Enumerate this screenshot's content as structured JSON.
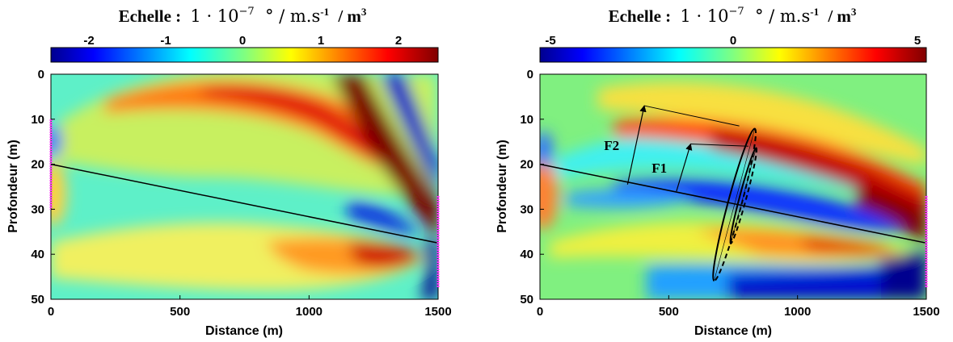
{
  "chart_data": [
    {
      "type": "heatmap",
      "title_prefix": "Echelle :",
      "title_math": "1 · 10",
      "title_exp": "−7",
      "title_units": "° / m.s",
      "title_units_exp": "-1",
      "title_tail": "/ m",
      "title_tail_exp": "3",
      "colorbar": {
        "ticks": [
          "-2",
          "-1",
          "0",
          "1",
          "2"
        ],
        "tick_values": [
          -2,
          -1,
          0,
          1,
          2
        ],
        "range": [
          -2.5,
          2.5
        ]
      },
      "xlabel": "Distance (m)",
      "ylabel": "Profondeur (m)",
      "xlim": [
        0,
        1500
      ],
      "ylim": [
        50,
        0
      ],
      "xticks": [
        0,
        500,
        1000,
        1500
      ],
      "yticks": [
        0,
        10,
        20,
        30,
        40,
        50
      ],
      "interface_line": [
        [
          0,
          20
        ],
        [
          1500,
          37.5
        ]
      ],
      "colormap": "jet",
      "annotations": []
    },
    {
      "type": "heatmap",
      "title_prefix": "Echelle :",
      "title_math": "1 · 10",
      "title_exp": "−7",
      "title_units": "° / m.s",
      "title_units_exp": "-1",
      "title_tail": "/ m",
      "title_tail_exp": "3",
      "colorbar": {
        "ticks": [
          "-5",
          "0",
          "5"
        ],
        "tick_values": [
          -5,
          0,
          5
        ],
        "range": [
          -5,
          5
        ]
      },
      "xlabel": "Distance (m)",
      "ylabel": "Profondeur (m)",
      "xlim": [
        0,
        1500
      ],
      "ylim": [
        50,
        0
      ],
      "xticks": [
        0,
        500,
        1000,
        1500
      ],
      "yticks": [
        0,
        10,
        20,
        30,
        40,
        50
      ],
      "interface_line": [
        [
          0,
          20
        ],
        [
          1500,
          37.5
        ]
      ],
      "colormap": "jet",
      "annotations": [
        {
          "label": "F2",
          "base": [
            340,
            24.5
          ],
          "tip": [
            405,
            7
          ],
          "ellipse_center": [
            755,
            29
          ],
          "ellipse_semi": [
            80,
            17.5
          ]
        },
        {
          "label": "F1",
          "base": [
            530,
            26
          ],
          "tip": [
            585,
            15.5
          ],
          "ellipse_center": [
            790,
            27
          ],
          "ellipse_semi": [
            40,
            11
          ]
        }
      ]
    }
  ]
}
